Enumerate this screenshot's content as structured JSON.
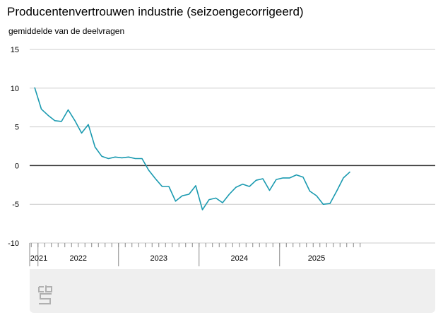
{
  "title": "Producentenvertrouwen industrie (seizoengecorrigeerd)",
  "subtitle": "gemiddelde van de deelvragen",
  "colors": {
    "line": "#1a9ab0",
    "zero_line": "#333333",
    "grid": "#cccccc",
    "footer": "#efefef",
    "logo": "#b0b0b0"
  },
  "logo": {
    "name": "cbs-logo",
    "text": "cbs"
  },
  "chart_data": {
    "type": "line",
    "title": "Producentenvertrouwen industrie (seizoengecorrigeerd)",
    "ylabel": "gemiddelde van de deelvragen",
    "ylim": [
      -10,
      15
    ],
    "yticks": [
      15,
      10,
      5,
      0,
      -5,
      -10
    ],
    "grid": true,
    "x_start": "2021-12",
    "x_end": "2025-11",
    "year_labels": [
      "2021",
      "2022",
      "2023",
      "2024",
      "2025"
    ],
    "series": [
      {
        "values": [
          10.1,
          7.3,
          6.5,
          5.8,
          5.7,
          7.2,
          5.8,
          4.2,
          5.3,
          2.4,
          1.2,
          0.9,
          1.1,
          1.0,
          1.1,
          0.9,
          0.9,
          -0.6,
          -1.7,
          -2.7,
          -2.7,
          -4.6,
          -3.9,
          -3.7,
          -2.6,
          -5.7,
          -4.4,
          -4.2,
          -4.8,
          -3.7,
          -2.8,
          -2.4,
          -2.7,
          -1.9,
          -1.7,
          -3.2,
          -1.8,
          -1.6,
          -1.6,
          -1.2,
          -1.5,
          -3.3,
          -3.9,
          -5.0,
          -4.9,
          -3.3,
          -1.6,
          -0.8
        ]
      }
    ]
  }
}
